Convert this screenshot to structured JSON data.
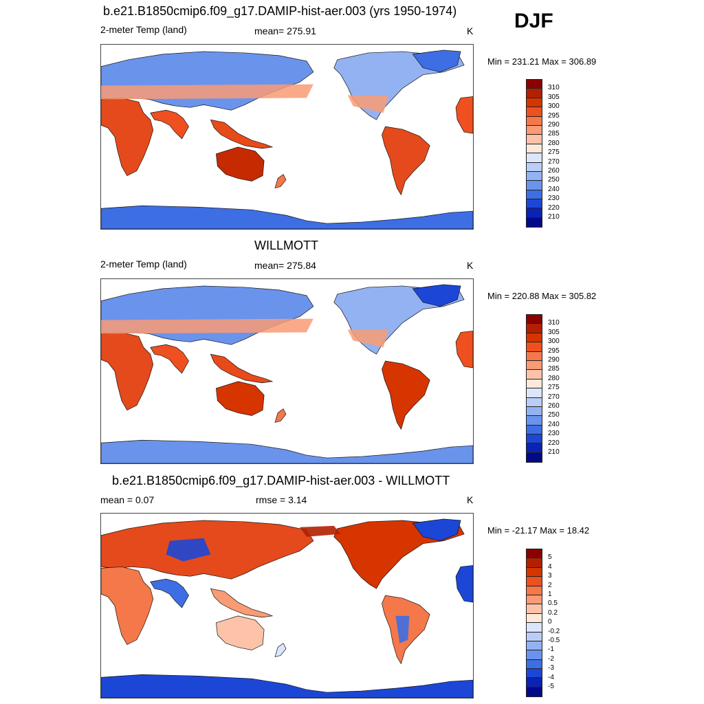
{
  "season": "DJF",
  "panels": [
    {
      "title": "b.e21.B1850cmip6.f09_g17.DAMIP-hist-aer.003 (yrs 1950-1974)",
      "left_label": "2-meter Temp (land)",
      "center_label": "mean= 275.91",
      "right_label": "K",
      "minmax": "Min = 231.21 Max = 306.89",
      "colorbar": {
        "labels": [
          "310",
          "305",
          "300",
          "295",
          "290",
          "285",
          "280",
          "275",
          "270",
          "260",
          "250",
          "240",
          "230",
          "220",
          "210"
        ],
        "colors": [
          "#8b0000",
          "#b22000",
          "#d63500",
          "#ee5020",
          "#f4784a",
          "#f99b74",
          "#fcc3a8",
          "#fde9d9",
          "#dbe6fa",
          "#b9cdf7",
          "#93b2f2",
          "#6a93ec",
          "#3e6ee3",
          "#1c47d6",
          "#0a23b5",
          "#000a88"
        ]
      },
      "map_kind": "temp_model"
    },
    {
      "title": "WILLMOTT",
      "left_label": "2-meter Temp (land)",
      "center_label": "mean= 275.84",
      "right_label": "K",
      "minmax": "Min = 220.88 Max = 305.82",
      "colorbar": {
        "labels": [
          "310",
          "305",
          "300",
          "295",
          "290",
          "285",
          "280",
          "275",
          "270",
          "260",
          "250",
          "240",
          "230",
          "220",
          "210"
        ],
        "colors": [
          "#8b0000",
          "#b22000",
          "#d63500",
          "#ee5020",
          "#f4784a",
          "#f99b74",
          "#fcc3a8",
          "#fde9d9",
          "#dbe6fa",
          "#b9cdf7",
          "#93b2f2",
          "#6a93ec",
          "#3e6ee3",
          "#1c47d6",
          "#0a23b5",
          "#000a88"
        ]
      },
      "map_kind": "temp_obs"
    },
    {
      "title": "b.e21.B1850cmip6.f09_g17.DAMIP-hist-aer.003 - WILLMOTT",
      "left_label": "mean =   0.07",
      "center_label": "rmse =   3.14",
      "right_label": "K",
      "minmax": "Min = -21.17 Max =  18.42",
      "colorbar": {
        "labels": [
          "5",
          "4",
          "3",
          "2",
          "1",
          "0.5",
          "0.2",
          "0",
          "-0.2",
          "-0.5",
          "-1",
          "-2",
          "-3",
          "-4",
          "-5"
        ],
        "colors": [
          "#8b0000",
          "#b22000",
          "#d63500",
          "#ee5020",
          "#f4784a",
          "#f99b74",
          "#fcc3a8",
          "#fde9d9",
          "#dbe6fa",
          "#b9cdf7",
          "#93b2f2",
          "#6a93ec",
          "#3e6ee3",
          "#1c47d6",
          "#0a23b5",
          "#000a88"
        ]
      },
      "map_kind": "diff"
    }
  ]
}
